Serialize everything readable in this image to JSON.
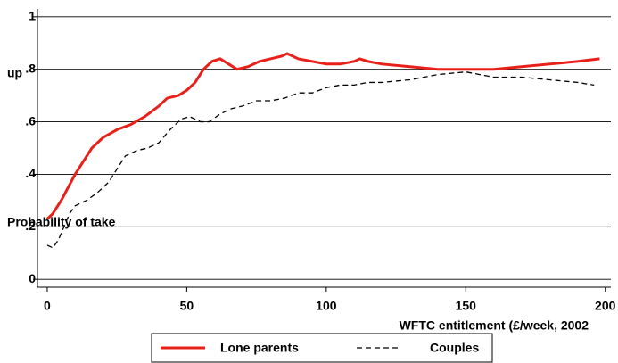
{
  "chart_data": {
    "type": "line",
    "ylabel_parts": [
      "Probability of take",
      "up"
    ],
    "xlabel": "WFTC entitlement (£/week, 2002",
    "xlim": [
      -3.5,
      202
    ],
    "xticks": [
      0,
      50,
      100,
      150,
      200
    ],
    "ylim": [
      -0.03,
      1.03
    ],
    "yticks": [
      0,
      {
        "value": 0.2,
        "label": ".2"
      },
      {
        "value": 0.4,
        "label": ".4"
      },
      {
        "value": 0.6,
        "label": ".6"
      },
      {
        "value": 0.8,
        "label": ".8"
      },
      1
    ],
    "grid": true,
    "series": [
      {
        "name": "Lone parents",
        "color": "#e8201a",
        "dash": false,
        "x": [
          0,
          2,
          5,
          8,
          10,
          13,
          16,
          20,
          25,
          30,
          35,
          40,
          43,
          47,
          50,
          53,
          56,
          59,
          62,
          65,
          68,
          72,
          76,
          80,
          84,
          86,
          90,
          95,
          100,
          105,
          110,
          112,
          115,
          120,
          130,
          140,
          150,
          160,
          170,
          180,
          190,
          198
        ],
        "values": [
          0.23,
          0.25,
          0.3,
          0.36,
          0.4,
          0.45,
          0.5,
          0.54,
          0.57,
          0.59,
          0.62,
          0.66,
          0.69,
          0.7,
          0.72,
          0.75,
          0.8,
          0.83,
          0.84,
          0.82,
          0.8,
          0.81,
          0.83,
          0.84,
          0.85,
          0.86,
          0.84,
          0.83,
          0.82,
          0.82,
          0.83,
          0.84,
          0.83,
          0.82,
          0.81,
          0.8,
          0.8,
          0.8,
          0.81,
          0.82,
          0.83,
          0.84
        ]
      },
      {
        "name": "Couples",
        "color": "#000000",
        "dash": true,
        "x": [
          0,
          2,
          4,
          6,
          8,
          10,
          14,
          18,
          22,
          25,
          28,
          32,
          36,
          40,
          44,
          48,
          51,
          55,
          58,
          62,
          66,
          70,
          75,
          80,
          85,
          90,
          95,
          100,
          105,
          110,
          115,
          120,
          130,
          140,
          150,
          155,
          160,
          170,
          180,
          190,
          196
        ],
        "values": [
          0.13,
          0.12,
          0.15,
          0.2,
          0.25,
          0.28,
          0.3,
          0.33,
          0.37,
          0.42,
          0.47,
          0.49,
          0.5,
          0.52,
          0.57,
          0.61,
          0.62,
          0.6,
          0.6,
          0.63,
          0.65,
          0.66,
          0.68,
          0.68,
          0.69,
          0.71,
          0.71,
          0.73,
          0.74,
          0.74,
          0.75,
          0.75,
          0.76,
          0.78,
          0.79,
          0.78,
          0.77,
          0.77,
          0.76,
          0.75,
          0.74
        ]
      }
    ]
  }
}
